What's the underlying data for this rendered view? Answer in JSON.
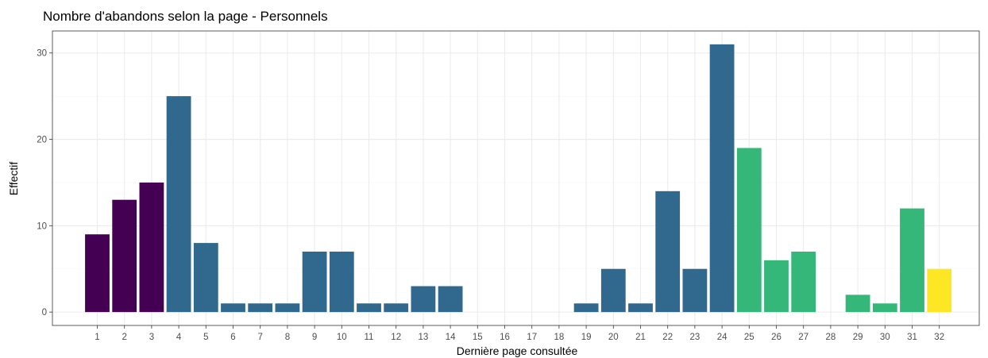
{
  "chart_data": {
    "type": "bar",
    "title": "Nombre d'abandons selon la page - Personnels",
    "xlabel": "Dernière page consultée",
    "ylabel": "Effectif",
    "categories": [
      "1",
      "2",
      "3",
      "4",
      "5",
      "6",
      "7",
      "8",
      "9",
      "10",
      "11",
      "12",
      "13",
      "14",
      "15",
      "16",
      "17",
      "18",
      "19",
      "20",
      "21",
      "22",
      "23",
      "24",
      "25",
      "26",
      "27",
      "28",
      "29",
      "30",
      "31",
      "32"
    ],
    "values": [
      9,
      13,
      15,
      25,
      8,
      1,
      1,
      1,
      7,
      7,
      1,
      1,
      3,
      3,
      0,
      0,
      0,
      0,
      1,
      5,
      1,
      14,
      5,
      31,
      19,
      6,
      7,
      0,
      2,
      1,
      12,
      5
    ],
    "bar_colors": [
      "#440154",
      "#440154",
      "#440154",
      "#31688e",
      "#31688e",
      "#31688e",
      "#31688e",
      "#31688e",
      "#31688e",
      "#31688e",
      "#31688e",
      "#31688e",
      "#31688e",
      "#31688e",
      "#31688e",
      "#31688e",
      "#31688e",
      "#31688e",
      "#31688e",
      "#31688e",
      "#31688e",
      "#31688e",
      "#31688e",
      "#31688e",
      "#35b779",
      "#35b779",
      "#35b779",
      "#35b779",
      "#35b779",
      "#35b779",
      "#35b779",
      "#fde725"
    ],
    "yticks": [
      0,
      10,
      20,
      30
    ],
    "ylim": [
      -1.55,
      32.55
    ],
    "grid": true,
    "legend": "none"
  }
}
